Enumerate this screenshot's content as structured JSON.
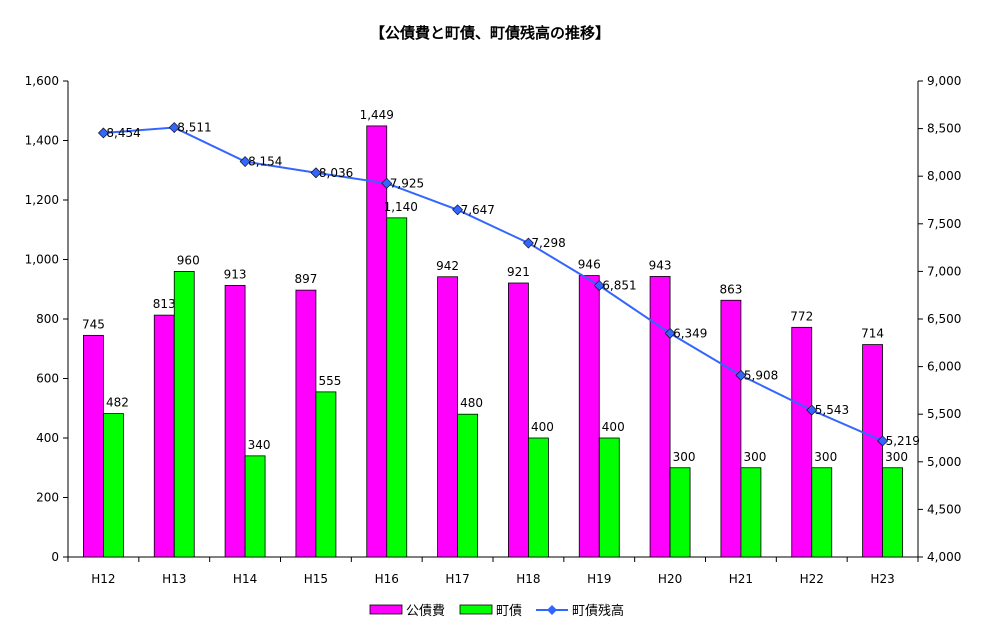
{
  "chart_data": {
    "type": "bar",
    "title": "【公債費と町債、町債残高の推移】",
    "categories": [
      "H12",
      "H13",
      "H14",
      "H15",
      "H16",
      "H17",
      "H18",
      "H19",
      "H20",
      "H21",
      "H22",
      "H23"
    ],
    "series": [
      {
        "name": "公債費",
        "type": "bar",
        "axis": "left",
        "color": "#FF00FF",
        "values": [
          745,
          813,
          913,
          897,
          1449,
          942,
          921,
          946,
          943,
          863,
          772,
          714
        ]
      },
      {
        "name": "町債",
        "type": "bar",
        "axis": "left",
        "color": "#00FF00",
        "values": [
          482,
          960,
          340,
          555,
          1140,
          480,
          400,
          400,
          300,
          300,
          300,
          300
        ]
      },
      {
        "name": "町債残高",
        "type": "line",
        "axis": "right",
        "color": "#3366FF",
        "values": [
          8454,
          8511,
          8154,
          8036,
          7925,
          7647,
          7298,
          6851,
          6349,
          5908,
          5543,
          5219
        ]
      }
    ],
    "ylim": [
      0,
      1600
    ],
    "yticks": [
      0,
      200,
      400,
      600,
      800,
      1000,
      1200,
      1400,
      1600
    ],
    "y2lim": [
      4000,
      9000
    ],
    "y2ticks": [
      4000,
      4500,
      5000,
      5500,
      6000,
      6500,
      7000,
      7500,
      8000,
      8500,
      9000
    ],
    "legend": "bottom",
    "grid": false
  }
}
